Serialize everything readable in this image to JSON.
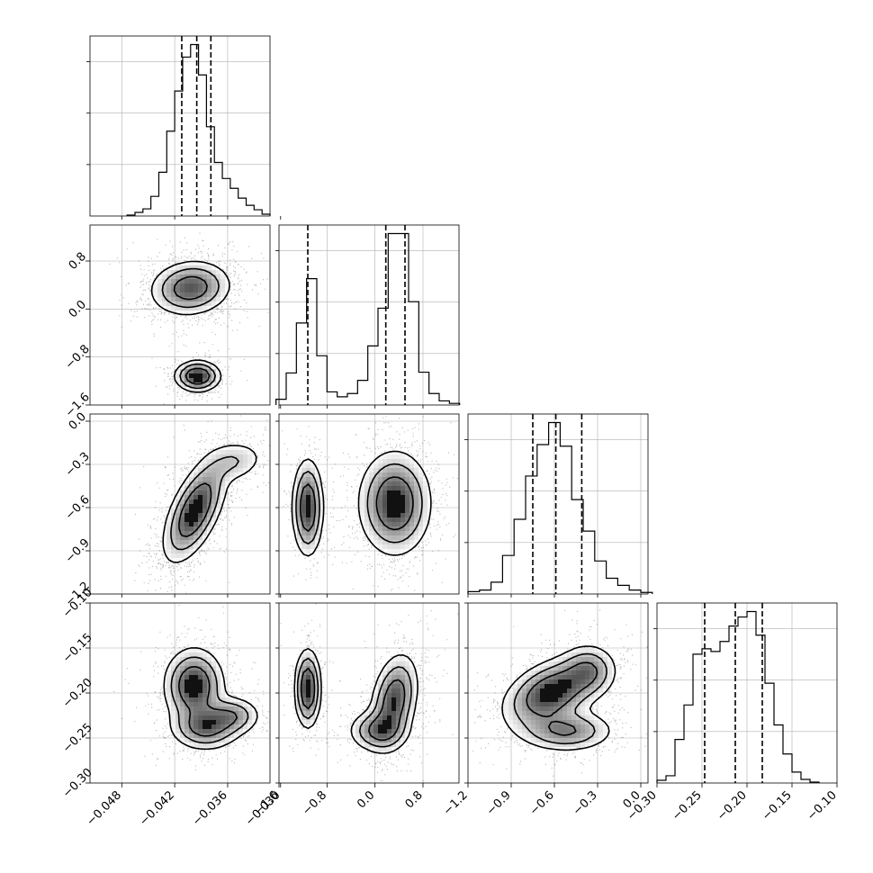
{
  "chart_data": {
    "type": "corner",
    "grid": true,
    "legend": "none",
    "colors": {
      "ink": "#000000",
      "grid": "#b0b0b0",
      "contour_fill": "#ffffff"
    },
    "params": [
      {
        "ticks": [
          -0.048,
          -0.042,
          -0.036,
          -0.03
        ],
        "tick_labels": [
          "−0.048",
          "−0.042",
          "−0.036",
          "−0.030"
        ],
        "range": [
          -0.0516,
          -0.0312
        ]
      },
      {
        "ticks": [
          -1.6,
          -0.8,
          0.0,
          0.8
        ],
        "tick_labels": [
          "−1.6",
          "−0.8",
          "0.0",
          "0.8"
        ],
        "range": [
          -1.6,
          1.4
        ]
      },
      {
        "ticks": [
          -1.2,
          -0.9,
          -0.6,
          -0.3,
          0.0
        ],
        "tick_labels": [
          "−1.2",
          "−0.9",
          "−0.6",
          "−0.3",
          "0.0"
        ],
        "range": [
          -1.2,
          0.05
        ]
      },
      {
        "ticks": [
          -0.3,
          -0.25,
          -0.2,
          -0.15,
          -0.1
        ],
        "tick_labels": [
          "−0.30",
          "−0.25",
          "−0.20",
          "−0.15",
          "−0.10"
        ],
        "range": [
          -0.3,
          -0.1
        ]
      }
    ],
    "histograms": [
      {
        "quantiles": [
          -0.0412,
          -0.0395,
          -0.0379
        ],
        "bins_x": [
          -0.0474,
          -0.0465,
          -0.0456,
          -0.0447,
          -0.0438,
          -0.0429,
          -0.042,
          -0.0411,
          -0.0402,
          -0.0393,
          -0.0384,
          -0.0375,
          -0.0366,
          -0.0357,
          -0.0348,
          -0.0339,
          -0.033,
          -0.0321,
          -0.0312
        ],
        "counts": [
          1,
          4,
          8,
          22,
          49,
          95,
          140,
          178,
          192,
          158,
          100,
          60,
          42,
          31,
          20,
          12,
          7,
          2
        ]
      },
      {
        "quantiles": [
          -1.12,
          0.18,
          0.5
        ],
        "bins_x": [
          -1.65,
          -1.48,
          -1.31,
          -1.14,
          -0.97,
          -0.8,
          -0.63,
          -0.46,
          -0.29,
          -0.12,
          0.05,
          0.22,
          0.39,
          0.56,
          0.73,
          0.9,
          1.07,
          1.24,
          1.41
        ],
        "counts": [
          7,
          39,
          100,
          154,
          60,
          16,
          10,
          14,
          30,
          72,
          118,
          209,
          209,
          126,
          40,
          14,
          5,
          2
        ]
      },
      {
        "quantiles": [
          -0.75,
          -0.59,
          -0.41
        ],
        "bins_x": [
          -1.2,
          -1.12,
          -1.04,
          -0.96,
          -0.88,
          -0.8,
          -0.72,
          -0.64,
          -0.56,
          -0.48,
          -0.4,
          -0.32,
          -0.24,
          -0.16,
          -0.08,
          0.0,
          0.08
        ],
        "counts": [
          3,
          5,
          15,
          49,
          95,
          150,
          190,
          218,
          188,
          120,
          80,
          42,
          20,
          11,
          5,
          2
        ]
      },
      {
        "quantiles": [
          -0.247,
          -0.213,
          -0.183
        ],
        "bins_x": [
          -0.3,
          -0.29,
          -0.28,
          -0.27,
          -0.26,
          -0.25,
          -0.24,
          -0.23,
          -0.22,
          -0.21,
          -0.2,
          -0.19,
          -0.18,
          -0.17,
          -0.16,
          -0.15,
          -0.14,
          -0.13,
          -0.12
        ],
        "counts": [
          3,
          8,
          48,
          86,
          142,
          148,
          145,
          156,
          173,
          183,
          189,
          163,
          110,
          64,
          32,
          12,
          4,
          1
        ]
      }
    ],
    "joint": [
      {
        "x": 0,
        "y": 1,
        "modes": [
          {
            "mx": -0.0402,
            "my": 0.35,
            "sx": 0.0023,
            "sy": 0.23,
            "rho": 0.1,
            "w": 0.72
          },
          {
            "mx": -0.0394,
            "my": -1.12,
            "sx": 0.0013,
            "sy": 0.13,
            "rho": 0.0,
            "w": 0.28
          }
        ]
      },
      {
        "x": 0,
        "y": 2,
        "modes": [
          {
            "mx": -0.0397,
            "my": -0.62,
            "sx": 0.0018,
            "sy": 0.18,
            "rho": 0.6,
            "w": 0.85
          },
          {
            "mx": -0.0352,
            "my": -0.28,
            "sx": 0.0019,
            "sy": 0.08,
            "rho": 0.2,
            "w": 0.15
          }
        ]
      },
      {
        "x": 1,
        "y": 2,
        "modes": [
          {
            "mx": -1.12,
            "my": -0.6,
            "sx": 0.13,
            "sy": 0.17,
            "rho": 0.0,
            "w": 0.28
          },
          {
            "mx": 0.33,
            "my": -0.57,
            "sx": 0.3,
            "sy": 0.18,
            "rho": 0.0,
            "w": 0.72
          }
        ]
      },
      {
        "x": 0,
        "y": 3,
        "modes": [
          {
            "mx": -0.0398,
            "my": -0.192,
            "sx": 0.0017,
            "sy": 0.021,
            "rho": 0.0,
            "w": 0.55
          },
          {
            "mx": -0.0385,
            "my": -0.238,
            "sx": 0.002,
            "sy": 0.013,
            "rho": 0.0,
            "w": 0.3
          },
          {
            "mx": -0.0355,
            "my": -0.225,
            "sx": 0.0017,
            "sy": 0.011,
            "rho": 0.0,
            "w": 0.15
          }
        ]
      },
      {
        "x": 1,
        "y": 3,
        "modes": [
          {
            "mx": -1.12,
            "my": -0.195,
            "sx": 0.11,
            "sy": 0.022,
            "rho": 0.0,
            "w": 0.28
          },
          {
            "mx": 0.32,
            "my": -0.208,
            "sx": 0.2,
            "sy": 0.026,
            "rho": 0.3,
            "w": 0.5
          },
          {
            "mx": 0.05,
            "my": -0.242,
            "sx": 0.25,
            "sy": 0.012,
            "rho": 0.0,
            "w": 0.22
          }
        ]
      },
      {
        "x": 2,
        "y": 3,
        "modes": [
          {
            "mx": -0.62,
            "my": -0.2,
            "sx": 0.17,
            "sy": 0.02,
            "rho": 0.4,
            "w": 0.6
          },
          {
            "mx": -0.52,
            "my": -0.242,
            "sx": 0.17,
            "sy": 0.012,
            "rho": 0.0,
            "w": 0.25
          },
          {
            "mx": -0.36,
            "my": -0.175,
            "sx": 0.1,
            "sy": 0.015,
            "rho": 0.0,
            "w": 0.15
          }
        ]
      }
    ]
  }
}
